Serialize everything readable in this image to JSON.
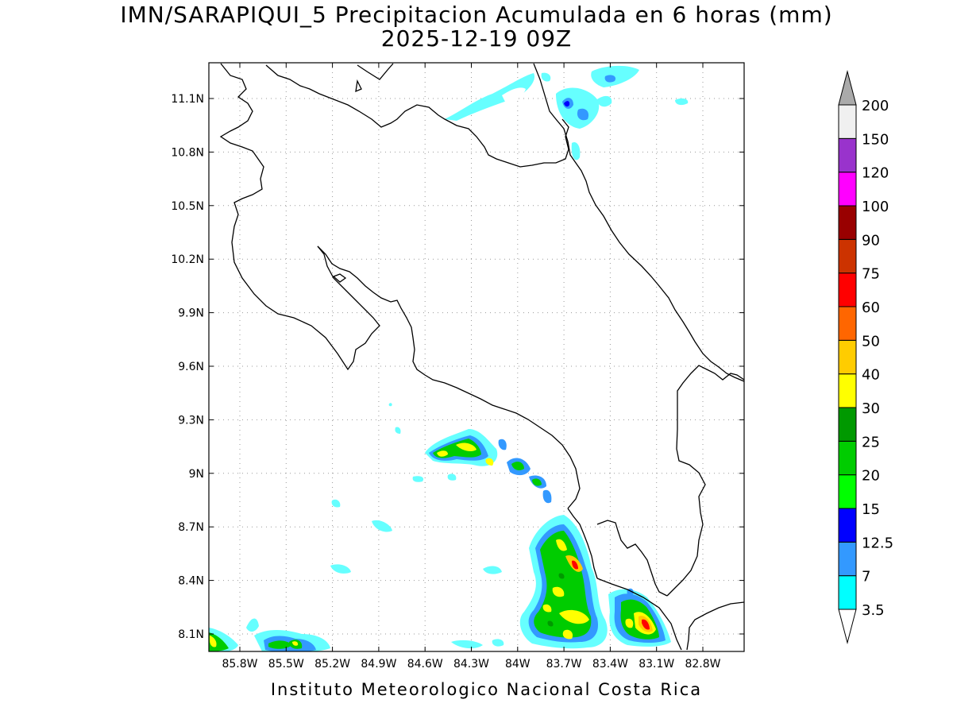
{
  "title_line1": "IMN/SARAPIQUI_5 Precipitacion Acumulada en 6 horas (mm)",
  "title_line2": "2025-12-19 09Z",
  "footer": "Instituto Meteorologico Nacional Costa Rica",
  "map": {
    "lon_range": [
      -86.0,
      -82.5
    ],
    "lat_range": [
      8.0,
      11.3
    ],
    "lon_ticks": [
      "85.8W",
      "85.5W",
      "85.2W",
      "84.9W",
      "84.6W",
      "84.3W",
      "84W",
      "83.7W",
      "83.4W",
      "83.1W",
      "82.8W"
    ],
    "lat_ticks": [
      "11.1N",
      "10.8N",
      "10.5N",
      "10.2N",
      "9.9N",
      "9.6N",
      "9.3N",
      "9N",
      "8.7N",
      "8.4N",
      "8.1N"
    ],
    "gridlines": "dotted"
  },
  "colorbar": {
    "levels": [
      "3.5",
      "7",
      "12.5",
      "15",
      "20",
      "25",
      "30",
      "40",
      "50",
      "60",
      "75",
      "90",
      "100",
      "120",
      "150",
      "200"
    ],
    "colors": [
      "#00ffff",
      "#3399ff",
      "#0000ff",
      "#00ff00",
      "#00cc00",
      "#009900",
      "#ffff00",
      "#ffcc00",
      "#ff6600",
      "#ff0000",
      "#cc3300",
      "#990000",
      "#ff00ff",
      "#9933cc",
      "#f0f0f0",
      "#aaaaaa"
    ]
  },
  "colors": {
    "light_cyan": "#66ffff",
    "light_blue": "#3399ff",
    "blue": "#0000ff",
    "light_green": "#00ff00",
    "green": "#00cc00",
    "dark_green": "#009900",
    "yellow": "#ffff00",
    "orange": "#ffcc00",
    "red": "#ff0000"
  }
}
